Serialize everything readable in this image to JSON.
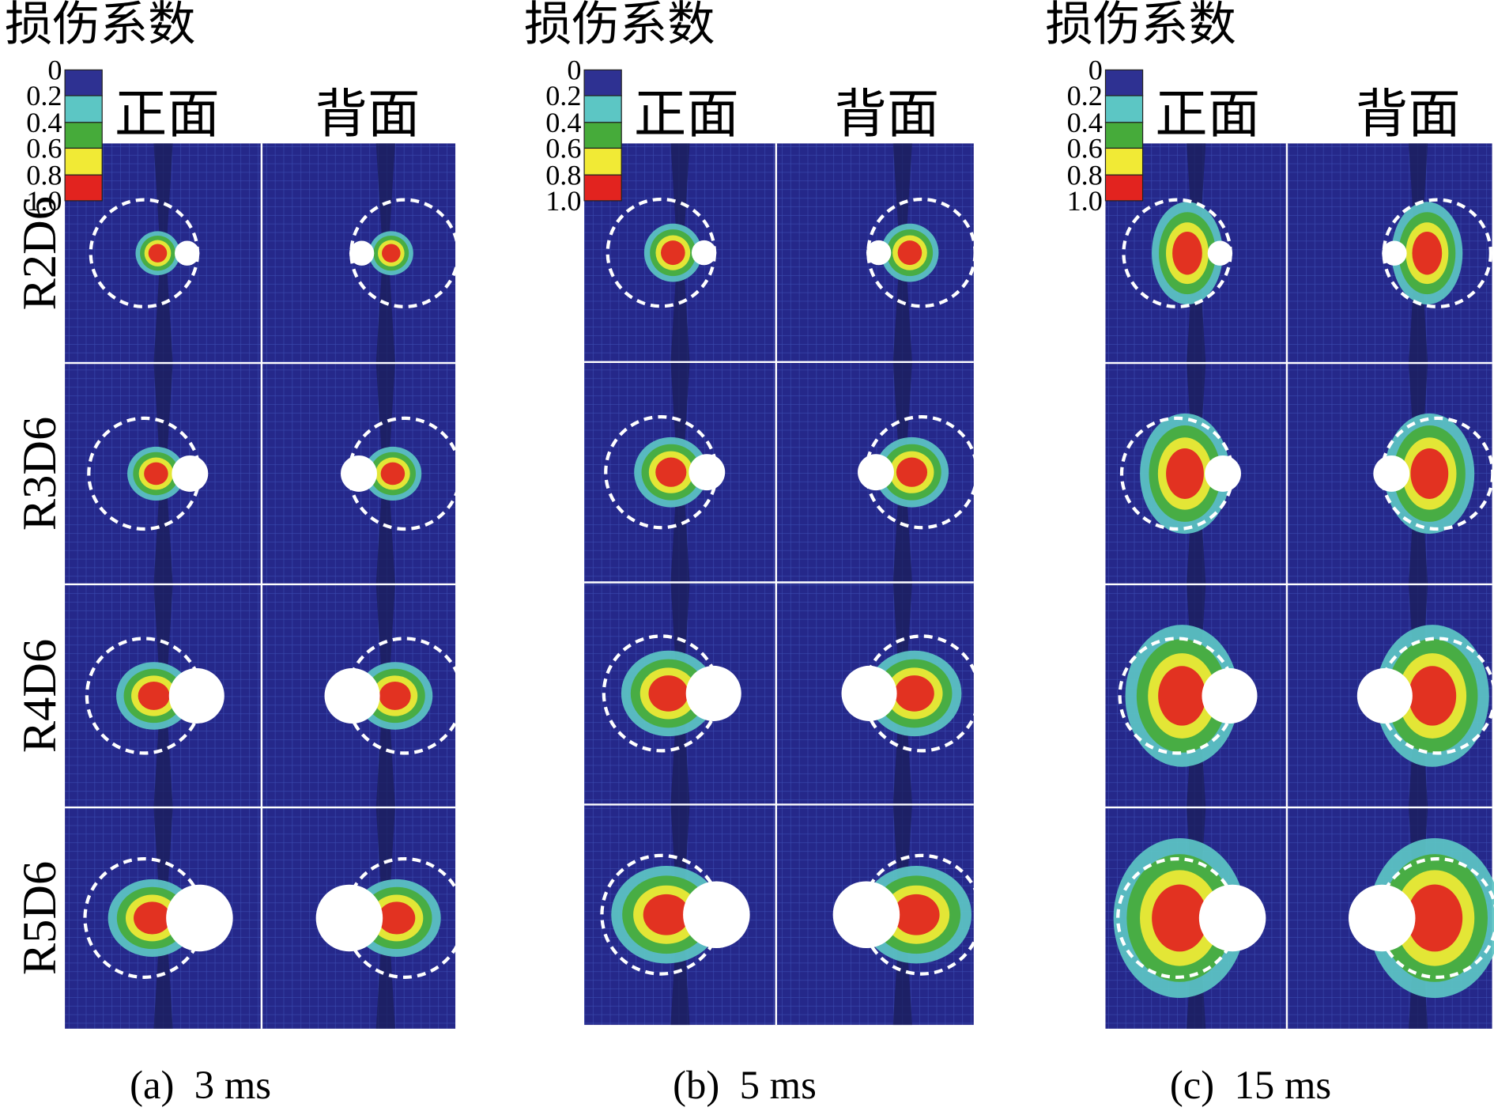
{
  "figure": {
    "row_labels": [
      "R2D6",
      "R3D6",
      "R4D6",
      "R5D6"
    ],
    "legend_colors": [
      "#2e3192",
      "#5cc6c4",
      "#46ab3a",
      "#f1ea35",
      "#e2231f"
    ],
    "panels": [
      {
        "title": "损伤系数",
        "legend_ticks": [
          "0",
          "0.2",
          "0.4",
          "0.6",
          "0.8",
          "1.0"
        ],
        "columns": [
          "正面",
          "背面"
        ],
        "caption": "(a)  3 ms"
      },
      {
        "title": "损伤系数",
        "legend_ticks": [
          "0",
          "0.2",
          "0.4",
          "0.6",
          "0.8",
          "1.0"
        ],
        "columns": [
          "正面",
          "背面"
        ],
        "caption": "(b)  5 ms"
      },
      {
        "title": "损伤系数",
        "legend_ticks": [
          "0",
          "0.2",
          "0.4",
          "0.6",
          "0.8",
          "1.0"
        ],
        "columns": [
          "正面",
          "背面"
        ],
        "caption": "(c)  15 ms"
      }
    ]
  }
}
